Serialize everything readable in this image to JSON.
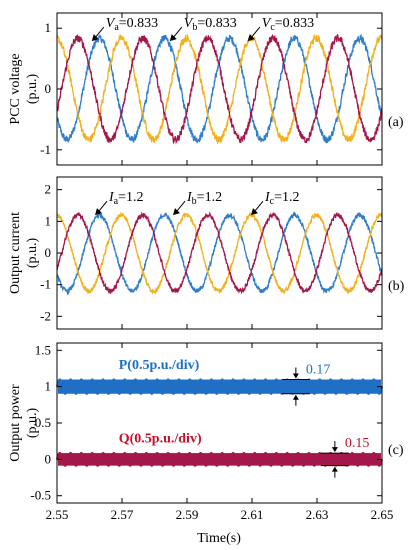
{
  "colors": {
    "blue": "#2f7ec9",
    "yellow": "#f2b01e",
    "crimson": "#a3174a",
    "p_blue": "#1f6fc4",
    "q_red": "#c0122a"
  },
  "chart_data": [
    {
      "type": "line",
      "panel_label": "(a)",
      "ylabel_line1": "PCC voltage",
      "ylabel_line2": "(p.u.)",
      "xlim": [
        2.55,
        2.65
      ],
      "ylim": [
        -1.25,
        1.25
      ],
      "yticks": [
        -1,
        0,
        1
      ],
      "frequency_hz": 50,
      "series": [
        {
          "amplitude": 0.833,
          "phase_deg": 0,
          "color": "#2f7ec9"
        },
        {
          "amplitude": 0.833,
          "phase_deg": -120,
          "color": "#f2b01e"
        },
        {
          "amplitude": 0.833,
          "phase_deg": 120,
          "color": "#a3174a"
        }
      ],
      "annotations": [
        {
          "sym": "V",
          "sub": "a",
          "value": "=0.833",
          "x": 2.565,
          "y": 1.05
        },
        {
          "sym": "V",
          "sub": "b",
          "value": "=0.833",
          "x": 2.589,
          "y": 1.05
        },
        {
          "sym": "V",
          "sub": "c",
          "value": "=0.833",
          "x": 2.613,
          "y": 1.05
        }
      ]
    },
    {
      "type": "line",
      "panel_label": "(b)",
      "ylabel_line1": "Output current",
      "ylabel_line2": "(p.u.)",
      "xlim": [
        2.55,
        2.65
      ],
      "ylim": [
        -2.4,
        2.4
      ],
      "yticks": [
        -2,
        -1,
        0,
        1,
        2
      ],
      "frequency_hz": 50,
      "series": [
        {
          "amplitude": 1.2,
          "phase_deg": 0,
          "color": "#2f7ec9"
        },
        {
          "amplitude": 1.2,
          "phase_deg": -120,
          "color": "#f2b01e"
        },
        {
          "amplitude": 1.2,
          "phase_deg": 120,
          "color": "#a3174a"
        }
      ],
      "annotations": [
        {
          "sym": "I",
          "sub": "a",
          "value": "=1.2",
          "x": 2.566,
          "y": 1.7
        },
        {
          "sym": "I",
          "sub": "b",
          "value": "=1.2",
          "x": 2.59,
          "y": 1.7
        },
        {
          "sym": "I",
          "sub": "c",
          "value": "=1.2",
          "x": 2.614,
          "y": 1.7
        }
      ]
    },
    {
      "type": "line",
      "panel_label": "(c)",
      "ylabel_line1": "Output power",
      "ylabel_line2": "(p.u.)",
      "xlim": [
        2.55,
        2.65
      ],
      "ylim": [
        -0.6,
        1.6
      ],
      "yticks": [
        -0.5,
        0,
        0.5,
        1,
        1.5
      ],
      "xticks": [
        2.55,
        2.57,
        2.59,
        2.61,
        2.63,
        2.65
      ],
      "xlabel": "Time(s)",
      "series": [
        {
          "name": "P(0.5p.u./div)",
          "value": 1.0,
          "ripple": 0.17,
          "color": "#1f6fc4"
        },
        {
          "name": "Q(0.5p.u./div)",
          "value": 0.0,
          "ripple": 0.15,
          "color": "#a3174a"
        }
      ],
      "series_labels": [
        {
          "text": "P(0.5p.u./div)",
          "x": 2.569,
          "y": 1.24,
          "color": "#1f6fc4"
        },
        {
          "text": "Q(0.5p.u./div)",
          "x": 2.569,
          "y": 0.23,
          "color": "#c0122a"
        }
      ],
      "ripple_annotations": [
        {
          "text": "0.17",
          "x": 2.6235,
          "center": 1.0,
          "color": "#1f6fc4"
        },
        {
          "text": "0.15",
          "x": 2.6355,
          "center": 0.0,
          "color": "#c0122a"
        }
      ]
    }
  ]
}
